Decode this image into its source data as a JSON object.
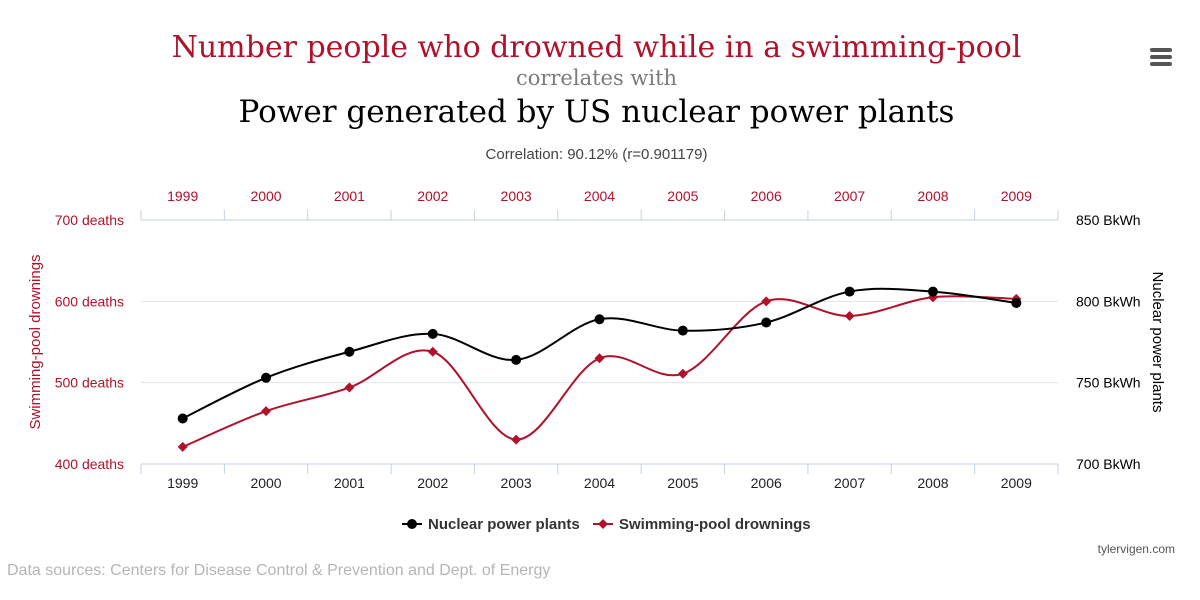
{
  "header": {
    "title_main": "Number people who drowned while in a swimming-pool",
    "title_mid": "correlates with",
    "title_second": "Power generated by US nuclear power plants",
    "correlation": "Correlation: 90.12% (r=0.901179)"
  },
  "menu": {
    "icon": "hamburger-menu-icon"
  },
  "footer": {
    "credit": "tylervigen.com",
    "sources": "Data sources: Centers for Disease Control & Prevention and Dept. of Energy"
  },
  "colors": {
    "drownings": "#b0122b",
    "nuclear": "#000000",
    "axis": "#c3d1df",
    "grid": "#dde4ec"
  },
  "chart_data": {
    "type": "line",
    "x": [
      1999,
      2000,
      2001,
      2002,
      2003,
      2004,
      2005,
      2006,
      2007,
      2008,
      2009
    ],
    "categories": [
      "1999",
      "2000",
      "2001",
      "2002",
      "2003",
      "2004",
      "2005",
      "2006",
      "2007",
      "2008",
      "2009"
    ],
    "series": [
      {
        "name": "Nuclear power plants",
        "axis": "right",
        "marker": "circle",
        "values": [
          728,
          753,
          769,
          780,
          764,
          789,
          782,
          787,
          806,
          806,
          799
        ]
      },
      {
        "name": "Swimming-pool drownings",
        "axis": "left",
        "marker": "diamond",
        "values": [
          421,
          465,
          494,
          538,
          430,
          530,
          511,
          600,
          582,
          605,
          603
        ]
      }
    ],
    "y_left": {
      "label": "Swimming-pool drownings",
      "range": [
        400,
        700
      ],
      "ticks": [
        "400 deaths",
        "500 deaths",
        "600 deaths",
        "700 deaths"
      ],
      "tick_values": [
        400,
        500,
        600,
        700
      ]
    },
    "y_right": {
      "label": "Nuclear power plants",
      "range": [
        700,
        850
      ],
      "ticks": [
        "700 BkWh",
        "750 BkWh",
        "800 BkWh",
        "850 BkWh"
      ],
      "tick_values": [
        700,
        750,
        800,
        850
      ]
    },
    "legend": {
      "placement": "bottom-center",
      "items": [
        "Nuclear power plants",
        "Swimming-pool drownings"
      ]
    },
    "grid": true
  }
}
